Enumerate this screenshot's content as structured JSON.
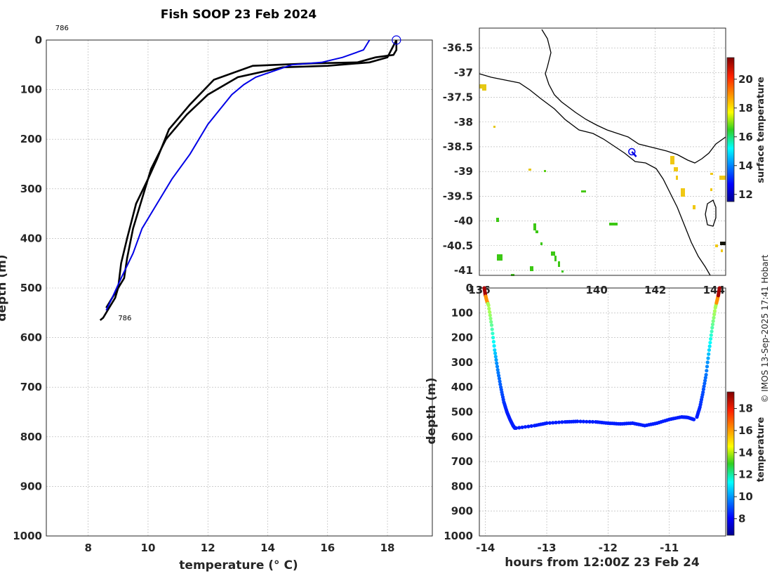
{
  "title": "Fish SOOP 23 Feb 2024",
  "copyright": "© IMOS 13-Sep-2025 17:41 Hobart",
  "colors": {
    "axis": "#262626",
    "profile_black": "#000000",
    "profile_blue": "#0000e6",
    "coast": "#000000"
  },
  "chart_data": [
    {
      "id": "profile",
      "type": "line",
      "xlabel": "temperature (° C)",
      "ylabel": "depth (m)",
      "xlim": [
        6.6,
        19.5
      ],
      "ylim": [
        1000,
        0
      ],
      "xticks": [
        8,
        10,
        12,
        14,
        16,
        18
      ],
      "yticks": [
        0,
        100,
        200,
        300,
        400,
        500,
        600,
        700,
        800,
        900,
        1000
      ],
      "annotations": [
        {
          "text": "786",
          "x": 6.9,
          "y": -20
        },
        {
          "text": "786",
          "x": 9.0,
          "y": 565
        }
      ],
      "marker": {
        "type": "circle",
        "x": 18.3,
        "y": 0
      },
      "series": [
        {
          "name": "profile-down",
          "color": "#000000",
          "x": [
            18.3,
            18.3,
            18.2,
            17.6,
            17.0,
            15.5,
            13.5,
            12.2,
            11.4,
            10.7,
            10.3,
            10.0,
            9.6,
            9.3,
            9.1,
            9.0,
            8.9,
            8.7,
            8.5,
            8.4
          ],
          "y": [
            0,
            20,
            30,
            35,
            45,
            47,
            52,
            80,
            130,
            180,
            240,
            280,
            330,
            400,
            450,
            500,
            520,
            540,
            560,
            565
          ]
        },
        {
          "name": "profile-up",
          "color": "#000000",
          "x": [
            8.6,
            8.9,
            9.2,
            9.3,
            9.5,
            9.8,
            10.1,
            10.6,
            11.3,
            12.0,
            13.0,
            14.5,
            16.0,
            17.4,
            18.0,
            18.3
          ],
          "y": [
            540,
            510,
            480,
            440,
            380,
            320,
            260,
            200,
            150,
            110,
            75,
            55,
            52,
            45,
            35,
            0
          ]
        },
        {
          "name": "climatology",
          "color": "#0000e6",
          "x": [
            17.4,
            17.2,
            16.5,
            15.8,
            14.8,
            13.6,
            13.2,
            12.8,
            12.4,
            12.0,
            11.4,
            10.8,
            10.2,
            9.8,
            9.5,
            9.1,
            8.8,
            8.6
          ],
          "y": [
            0,
            20,
            35,
            45,
            50,
            75,
            90,
            110,
            140,
            170,
            230,
            280,
            340,
            380,
            430,
            480,
            520,
            545
          ]
        }
      ]
    },
    {
      "id": "map",
      "type": "map",
      "xlim": [
        136,
        144.4
      ],
      "ylim": [
        -41.1,
        -36.1
      ],
      "xticks": [
        136,
        140,
        142,
        144
      ],
      "yticks": [
        -36.5,
        -37,
        -37.5,
        -38,
        -38.5,
        -39,
        -39.5,
        -40,
        -40.5,
        -41
      ],
      "xtick_labels": [
        "136",
        "140",
        "142",
        "144"
      ],
      "ytick_labels": [
        "-36.5",
        "-37",
        "-37.5",
        "-38",
        "-38.5",
        "-39",
        "-39.5",
        "-40",
        "-40.5",
        "-41"
      ],
      "track": {
        "color": "#0000e6",
        "lon": [
          141.2,
          141.35
        ],
        "lat": [
          -38.6,
          -38.7
        ]
      },
      "colorbar": {
        "label": "surface temperature",
        "ticks": [
          12,
          14,
          16,
          18,
          20
        ],
        "min": 11.5,
        "max": 21.5
      }
    },
    {
      "id": "section",
      "type": "scatter",
      "xlabel": "hours from 12:00Z 23 Feb 24",
      "ylabel": "depth (m)",
      "xlim": [
        -14.1,
        -10.08
      ],
      "ylim": [
        1000,
        0
      ],
      "xticks": [
        -14,
        -13,
        -12,
        -11
      ],
      "xtick_labels": [
        "-14",
        "-13",
        "-12",
        "-11"
      ],
      "yticks": [
        0,
        100,
        200,
        300,
        400,
        500,
        600,
        700,
        800,
        900,
        1000
      ],
      "ytick_labels": [
        "0",
        "100",
        "200",
        "300",
        "400",
        "500",
        "600",
        "700",
        "800",
        "900",
        "1000"
      ],
      "colorbar": {
        "label": "temperature",
        "ticks": [
          8,
          10,
          12,
          14,
          16,
          18
        ],
        "min": 6.5,
        "max": 19.5
      },
      "series": [
        {
          "name": "descent",
          "x": [
            -14.02,
            -14.0,
            -13.98,
            -13.95,
            -13.9,
            -13.85,
            -13.8,
            -13.75,
            -13.7,
            -13.65,
            -13.6,
            -13.55,
            -13.52
          ],
          "y": [
            0,
            30,
            50,
            70,
            150,
            250,
            330,
            400,
            460,
            500,
            530,
            555,
            565
          ]
        },
        {
          "name": "bottom",
          "x": [
            -13.5,
            -13.2,
            -13.0,
            -12.7,
            -12.5,
            -12.2,
            -12.0,
            -11.8,
            -11.6,
            -11.4,
            -11.2,
            -11.0,
            -10.8,
            -10.7,
            -10.6
          ],
          "y": [
            565,
            555,
            545,
            540,
            538,
            540,
            545,
            548,
            545,
            555,
            545,
            530,
            520,
            522,
            530
          ]
        },
        {
          "name": "ascent",
          "x": [
            -10.55,
            -10.5,
            -10.45,
            -10.4,
            -10.35,
            -10.3,
            -10.25,
            -10.22,
            -10.2,
            -10.18
          ],
          "y": [
            520,
            480,
            420,
            350,
            250,
            160,
            80,
            50,
            30,
            0
          ]
        }
      ]
    }
  ]
}
